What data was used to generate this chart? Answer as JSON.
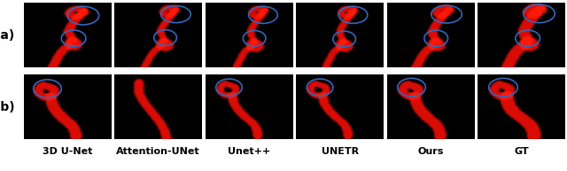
{
  "labels": [
    "3D U-Net",
    "Attention-UNet",
    "Unet++",
    "UNETR",
    "Ours",
    "GT"
  ],
  "row_labels": [
    "(a)",
    "(b)"
  ],
  "label_fontsize": 8,
  "row_label_fontsize": 10,
  "background_color": "#000000",
  "n_cols": 6,
  "n_rows": 2,
  "fig_width": 6.4,
  "fig_height": 1.93,
  "label_color": "#000000",
  "row_label_color": "#000000",
  "nerve_color": "#CC1100",
  "circle_color": "#3366BB"
}
